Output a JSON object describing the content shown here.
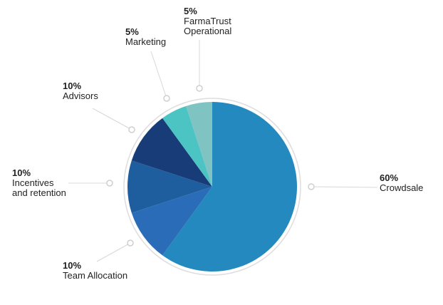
{
  "chart_data": {
    "type": "pie",
    "categories": [
      "Crowdsale",
      "Team Allocation",
      "Incentives\nand retention",
      "Advisors",
      "Marketing",
      "FarmaTrust\nOperational"
    ],
    "values": [
      60,
      10,
      10,
      10,
      5,
      5
    ],
    "value_labels": [
      "60%",
      "10%",
      "10%",
      "10%",
      "5%",
      "5%"
    ],
    "colors": [
      "#2389be",
      "#2a6cb8",
      "#1f5e9e",
      "#173c78",
      "#4dc4c4",
      "#7fc3c2"
    ]
  }
}
